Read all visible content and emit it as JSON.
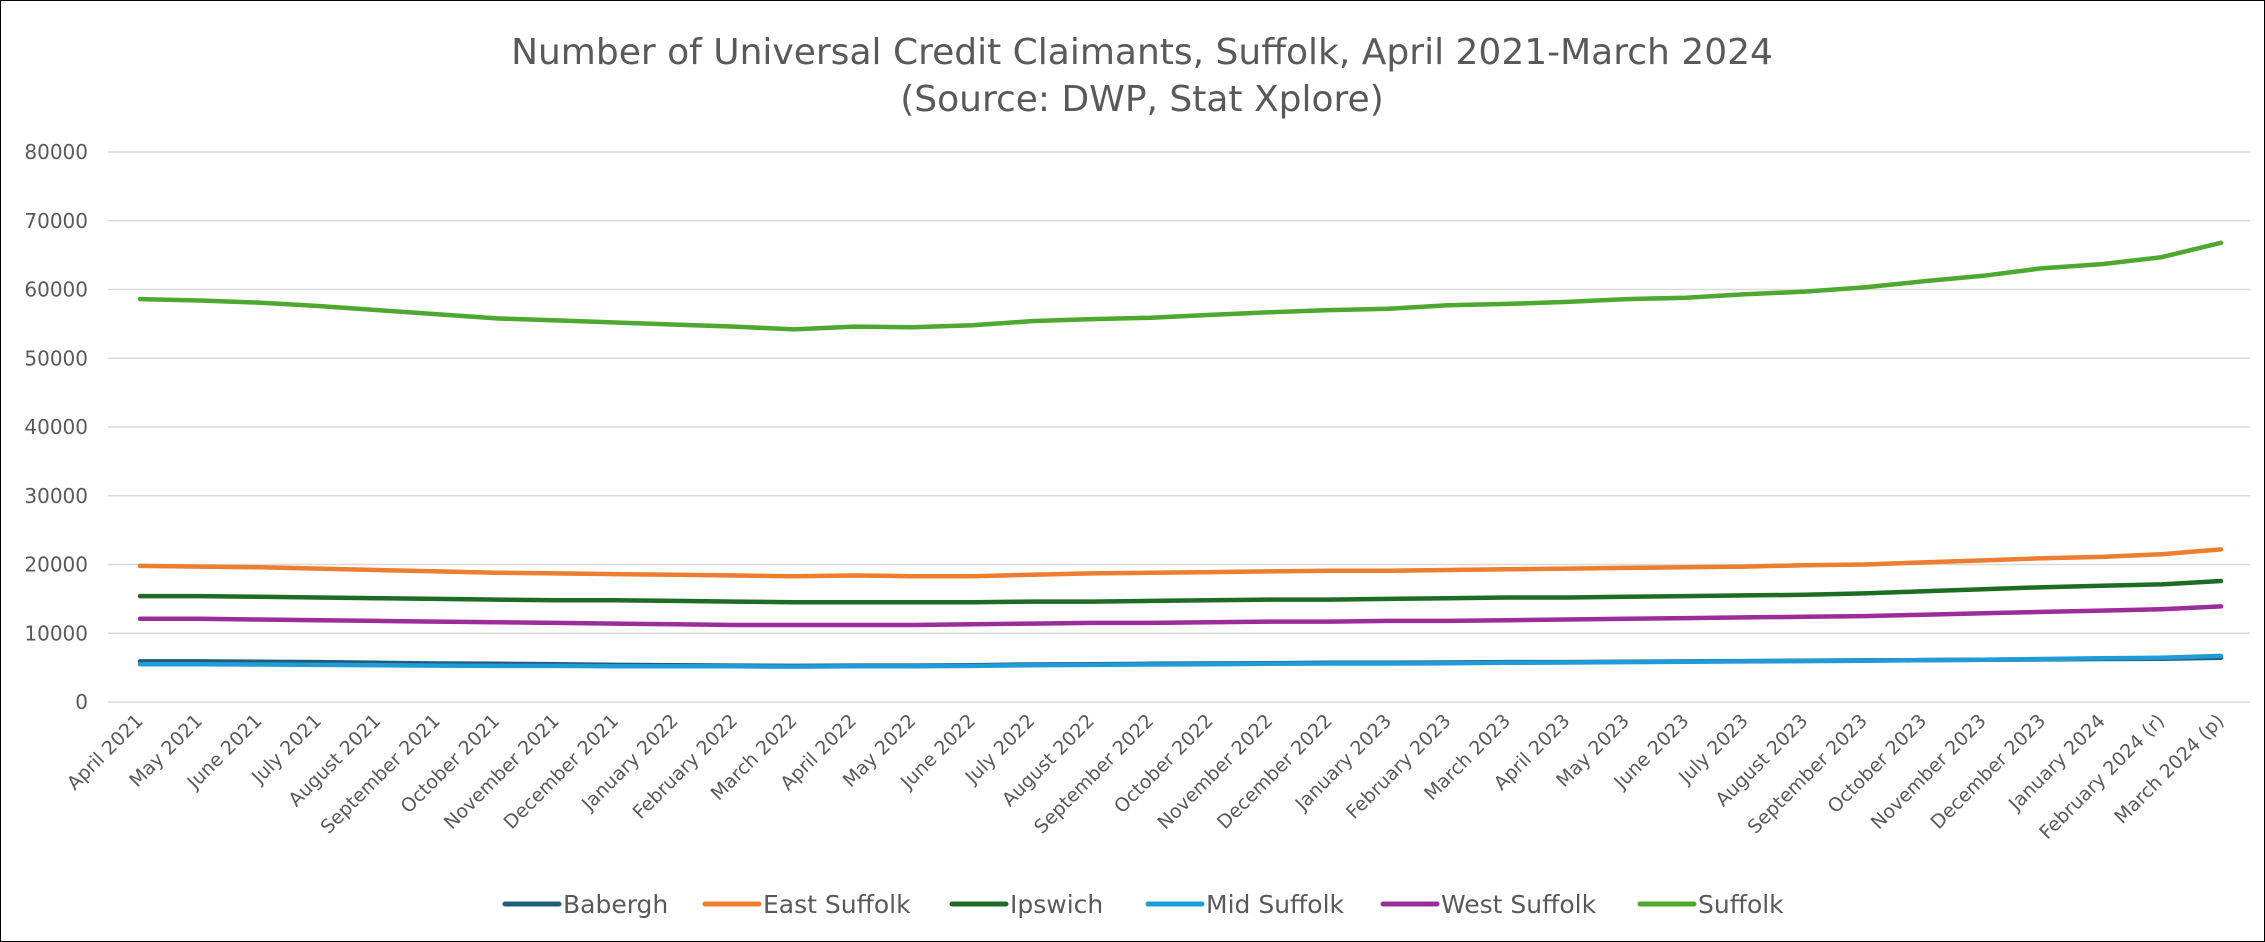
{
  "chart_data": {
    "type": "line",
    "title": "Number of Universal Credit Claimants, Suffolk, April 2021-March 2024",
    "subtitle": "(Source: DWP, Stat Xplore)",
    "xlabel": "",
    "ylabel": "",
    "ylim": [
      0,
      80000
    ],
    "yticks": [
      "0",
      "10000",
      "20000",
      "30000",
      "40000",
      "50000",
      "60000",
      "70000",
      "80000"
    ],
    "grid": true,
    "legend_position": "bottom",
    "categories": [
      "April 2021",
      "May 2021",
      "June 2021",
      "July 2021",
      "August 2021",
      "September 2021",
      "October 2021",
      "November 2021",
      "December 2021",
      "January 2022",
      "February 2022",
      "March 2022",
      "April 2022",
      "May 2022",
      "June 2022",
      "July 2022",
      "August 2022",
      "September 2022",
      "October 2022",
      "November 2022",
      "December 2022",
      "January 2023",
      "February 2023",
      "March 2023",
      "April 2023",
      "May 2023",
      "June 2023",
      "July 2023",
      "August 2023",
      "September 2023",
      "October 2023",
      "November 2023",
      "December 2023",
      "January 2024",
      "February 2024 (r)",
      "March 2024 (p)"
    ],
    "series": [
      {
        "name": "Babergh",
        "color": "#1F5C7A",
        "values": [
          5900,
          5900,
          5850,
          5800,
          5700,
          5600,
          5550,
          5500,
          5400,
          5350,
          5300,
          5250,
          5300,
          5300,
          5350,
          5450,
          5500,
          5550,
          5600,
          5650,
          5700,
          5700,
          5750,
          5800,
          5800,
          5850,
          5900,
          5950,
          6000,
          6050,
          6100,
          6150,
          6200,
          6250,
          6300,
          6450
        ]
      },
      {
        "name": "East Suffolk",
        "color": "#ED7D31",
        "values": [
          19800,
          19700,
          19600,
          19400,
          19200,
          19000,
          18800,
          18700,
          18600,
          18500,
          18400,
          18300,
          18400,
          18300,
          18300,
          18500,
          18700,
          18800,
          18900,
          19000,
          19100,
          19100,
          19200,
          19300,
          19400,
          19500,
          19600,
          19700,
          19900,
          20000,
          20300,
          20600,
          20900,
          21100,
          21500,
          22200
        ]
      },
      {
        "name": "Ipswich",
        "color": "#1E6B23",
        "values": [
          15400,
          15400,
          15300,
          15200,
          15100,
          15000,
          14900,
          14800,
          14800,
          14700,
          14600,
          14500,
          14500,
          14500,
          14500,
          14600,
          14600,
          14700,
          14800,
          14900,
          14900,
          15000,
          15100,
          15200,
          15200,
          15300,
          15400,
          15500,
          15600,
          15800,
          16100,
          16400,
          16700,
          16900,
          17100,
          17600
        ]
      },
      {
        "name": "Mid Suffolk",
        "color": "#1F9BD7",
        "values": [
          5500,
          5500,
          5450,
          5400,
          5350,
          5300,
          5250,
          5250,
          5200,
          5200,
          5200,
          5150,
          5200,
          5200,
          5250,
          5350,
          5400,
          5450,
          5500,
          5550,
          5600,
          5600,
          5650,
          5700,
          5750,
          5800,
          5850,
          5900,
          5950,
          6000,
          6100,
          6150,
          6250,
          6350,
          6450,
          6700
        ]
      },
      {
        "name": "West Suffolk",
        "color": "#9C2C98",
        "values": [
          12100,
          12100,
          12000,
          11900,
          11800,
          11700,
          11600,
          11500,
          11400,
          11300,
          11200,
          11200,
          11200,
          11200,
          11300,
          11400,
          11500,
          11500,
          11600,
          11700,
          11700,
          11800,
          11800,
          11900,
          12000,
          12100,
          12200,
          12300,
          12400,
          12500,
          12700,
          12900,
          13100,
          13300,
          13500,
          13900
        ]
      },
      {
        "name": "Suffolk",
        "color": "#4EA72E",
        "values": [
          58600,
          58400,
          58100,
          57600,
          57000,
          56400,
          55800,
          55500,
          55200,
          54900,
          54600,
          54200,
          54600,
          54500,
          54800,
          55400,
          55700,
          55900,
          56300,
          56700,
          57000,
          57200,
          57700,
          57900,
          58200,
          58600,
          58800,
          59300,
          59700,
          60300,
          61200,
          62000,
          63100,
          63700,
          64700,
          66800
        ]
      }
    ]
  }
}
